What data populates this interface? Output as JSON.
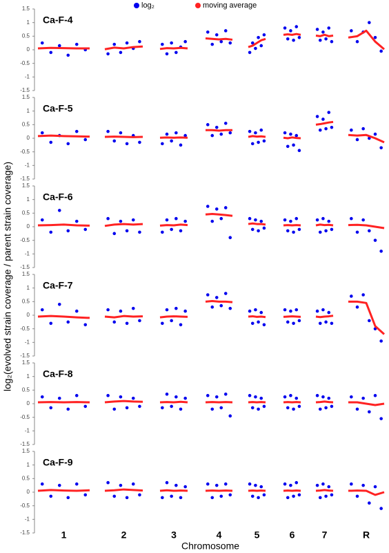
{
  "legend": [
    {
      "name": "log₂",
      "color": "#0000ee"
    },
    {
      "name": "moving average",
      "color": "#ff2222"
    }
  ],
  "y_label": "log₂(evolved strain coverage / parent strain coverage)",
  "x_label": "Chromosome",
  "categories": [
    "1",
    "2",
    "3",
    "4",
    "5",
    "6",
    "7",
    "R"
  ],
  "chart_data": [
    {
      "type": "scatter",
      "title": "Ca-F-4",
      "ylim": [
        -1.5,
        1.5
      ],
      "yticks": [
        -1.5,
        -1,
        -0.5,
        0,
        0.5,
        1,
        1.5
      ],
      "log2": [
        [
          0.25,
          -0.1,
          0.15,
          -0.2,
          0.2,
          0.0
        ],
        [
          -0.15,
          0.2,
          -0.1,
          0.25,
          0.05,
          0.3
        ],
        [
          0.2,
          -0.15,
          0.25,
          -0.1,
          0.1,
          0.3
        ],
        [
          0.65,
          0.2,
          0.55,
          0.3,
          0.7,
          0.25
        ],
        [
          -0.1,
          0.25,
          0.05,
          0.45,
          0.15,
          0.55
        ],
        [
          0.8,
          0.4,
          0.7,
          0.35,
          0.85,
          0.45
        ],
        [
          0.75,
          0.35,
          0.65,
          0.4,
          0.8,
          0.3
        ],
        [
          0.7,
          0.3,
          0.65,
          1.0,
          0.45,
          -0.05
        ]
      ],
      "moving_average": [
        [
          0.05,
          0.07,
          0.06,
          0.05,
          0.05
        ],
        [
          0.02,
          0.08,
          0.05,
          0.1,
          0.12
        ],
        [
          0.03,
          0.06,
          0.05,
          0.07,
          0.05
        ],
        [
          0.42,
          0.4,
          0.38,
          0.4,
          0.37
        ],
        [
          0.1,
          0.15,
          0.25,
          0.35,
          0.4
        ],
        [
          0.55,
          0.57,
          0.55,
          0.58,
          0.55
        ],
        [
          0.52,
          0.5,
          0.55,
          0.5,
          0.52
        ],
        [
          0.45,
          0.5,
          0.7,
          0.3,
          0.02
        ]
      ]
    },
    {
      "type": "scatter",
      "title": "Ca-F-5",
      "ylim": [
        -1.5,
        1.5
      ],
      "yticks": [
        -1.5,
        -1,
        -0.5,
        0,
        0.5,
        1,
        1.5
      ],
      "log2": [
        [
          0.2,
          -0.15,
          0.1,
          -0.2,
          0.25,
          -0.05
        ],
        [
          0.25,
          -0.1,
          0.2,
          -0.2,
          0.1,
          -0.15
        ],
        [
          -0.2,
          0.15,
          -0.1,
          0.2,
          -0.25,
          0.1
        ],
        [
          0.5,
          0.1,
          0.4,
          0.15,
          0.55,
          0.2
        ],
        [
          0.25,
          -0.2,
          0.2,
          -0.15,
          0.3,
          -0.1
        ],
        [
          0.2,
          -0.3,
          0.15,
          -0.25,
          0.1,
          -0.45
        ],
        [
          0.8,
          0.3,
          0.7,
          0.35,
          0.95,
          0.4
        ],
        [
          0.3,
          -0.05,
          0.35,
          0.0,
          0.15,
          -0.35
        ]
      ],
      "moving_average": [
        [
          0.08,
          0.1,
          0.08,
          0.07,
          0.06
        ],
        [
          0.05,
          0.06,
          0.05,
          0.04,
          0.05
        ],
        [
          0.02,
          0.03,
          0.02,
          0.03,
          0.02
        ],
        [
          0.3,
          0.3,
          0.28,
          0.3,
          0.3
        ],
        [
          0.05,
          0.08,
          0.06,
          0.07,
          0.05
        ],
        [
          0.02,
          0.0,
          0.03,
          0.01,
          0.0
        ],
        [
          0.5,
          0.52,
          0.55,
          0.58,
          0.6
        ],
        [
          0.12,
          0.1,
          0.12,
          0.0,
          -0.15
        ]
      ]
    },
    {
      "type": "scatter",
      "title": "Ca-F-6",
      "ylim": [
        -1.5,
        1.5
      ],
      "yticks": [
        -1.5,
        -1,
        -0.5,
        0,
        0.5,
        1,
        1.5
      ],
      "log2": [
        [
          0.25,
          -0.2,
          0.6,
          -0.15,
          0.2,
          -0.1
        ],
        [
          0.3,
          -0.25,
          0.2,
          -0.15,
          0.25,
          -0.2
        ],
        [
          -0.2,
          0.25,
          -0.1,
          0.3,
          -0.15,
          0.2
        ],
        [
          0.75,
          0.2,
          0.65,
          0.3,
          0.7,
          -0.4
        ],
        [
          0.3,
          -0.1,
          0.25,
          -0.15,
          0.2,
          -0.05
        ],
        [
          0.25,
          -0.15,
          0.2,
          -0.2,
          0.3,
          -0.1
        ],
        [
          0.25,
          -0.2,
          0.3,
          -0.15,
          0.2,
          -0.1
        ],
        [
          0.3,
          -0.2,
          0.25,
          -0.15,
          -0.5,
          -0.9
        ]
      ],
      "moving_average": [
        [
          0.05,
          0.06,
          0.08,
          0.05,
          0.04
        ],
        [
          0.03,
          0.08,
          0.1,
          0.08,
          0.1
        ],
        [
          0.04,
          0.06,
          0.05,
          0.08,
          0.06
        ],
        [
          0.45,
          0.47,
          0.45,
          0.43,
          0.4
        ],
        [
          0.1,
          0.12,
          0.1,
          0.1,
          0.08
        ],
        [
          0.05,
          0.06,
          0.05,
          0.06,
          0.05
        ],
        [
          0.05,
          0.08,
          0.06,
          0.07,
          0.05
        ],
        [
          0.06,
          0.07,
          0.05,
          0.0,
          -0.05
        ]
      ]
    },
    {
      "type": "scatter",
      "title": "Ca-F-7",
      "ylim": [
        -1.5,
        1.5
      ],
      "yticks": [
        -1.5,
        -1,
        -0.5,
        0,
        0.5,
        1,
        1.5
      ],
      "log2": [
        [
          0.2,
          -0.3,
          0.4,
          -0.25,
          0.15,
          -0.35
        ],
        [
          0.2,
          -0.25,
          0.15,
          -0.3,
          0.25,
          -0.2
        ],
        [
          -0.3,
          0.2,
          -0.2,
          0.25,
          -0.35,
          0.15
        ],
        [
          0.75,
          0.3,
          0.65,
          0.35,
          0.8,
          0.25
        ],
        [
          0.15,
          -0.3,
          0.2,
          -0.25,
          0.1,
          -0.35
        ],
        [
          0.2,
          -0.25,
          0.15,
          -0.3,
          0.2,
          -0.2
        ],
        [
          0.15,
          -0.3,
          0.2,
          -0.25,
          0.1,
          -0.3
        ],
        [
          0.7,
          0.3,
          0.75,
          -0.2,
          -0.5,
          -0.95
        ]
      ],
      "moving_average": [
        [
          -0.05,
          -0.03,
          -0.05,
          -0.08,
          -0.1
        ],
        [
          -0.05,
          -0.08,
          -0.03,
          -0.05,
          -0.04
        ],
        [
          -0.08,
          -0.05,
          -0.04,
          -0.05,
          -0.06
        ],
        [
          0.5,
          0.52,
          0.5,
          0.5,
          0.48
        ],
        [
          -0.05,
          -0.04,
          -0.06,
          -0.05,
          -0.07
        ],
        [
          -0.06,
          -0.05,
          -0.04,
          -0.05,
          -0.06
        ],
        [
          -0.05,
          -0.07,
          -0.05,
          -0.04,
          -0.02
        ],
        [
          0.5,
          0.5,
          0.45,
          -0.4,
          -0.7
        ]
      ]
    },
    {
      "type": "scatter",
      "title": "Ca-F-8",
      "ylim": [
        -1.5,
        1.5
      ],
      "yticks": [
        -1.5,
        -1,
        -0.5,
        0,
        0.5,
        1,
        1.5
      ],
      "log2": [
        [
          0.25,
          -0.15,
          0.2,
          -0.2,
          0.3,
          -0.1
        ],
        [
          0.3,
          -0.2,
          0.25,
          -0.15,
          0.2,
          -0.1
        ],
        [
          -0.15,
          0.35,
          -0.1,
          0.25,
          -0.2,
          0.2
        ],
        [
          0.3,
          -0.2,
          0.25,
          -0.15,
          0.35,
          -0.45
        ],
        [
          0.3,
          -0.15,
          0.25,
          -0.2,
          0.2,
          -0.1
        ],
        [
          0.25,
          -0.15,
          0.3,
          -0.2,
          0.2,
          -0.1
        ],
        [
          0.3,
          -0.2,
          0.25,
          -0.15,
          0.2,
          -0.1
        ],
        [
          0.25,
          -0.2,
          0.2,
          -0.3,
          0.3,
          -0.55
        ]
      ],
      "moving_average": [
        [
          0.05,
          0.06,
          0.05,
          0.06,
          0.05
        ],
        [
          0.05,
          0.08,
          0.1,
          0.08,
          0.07
        ],
        [
          0.05,
          0.06,
          0.05,
          0.07,
          0.05
        ],
        [
          0.05,
          0.06,
          0.05,
          0.06,
          0.05
        ],
        [
          0.05,
          0.06,
          0.05,
          0.06,
          0.05
        ],
        [
          0.05,
          0.06,
          0.05,
          0.06,
          0.05
        ],
        [
          0.05,
          0.06,
          0.08,
          0.06,
          0.05
        ],
        [
          0.05,
          0.05,
          0.0,
          -0.05,
          0.0
        ]
      ]
    },
    {
      "type": "scatter",
      "title": "Ca-F-9",
      "ylim": [
        -1.5,
        1.5
      ],
      "yticks": [
        -1.5,
        -1,
        -0.5,
        0,
        0.5,
        1,
        1.5
      ],
      "log2": [
        [
          0.3,
          -0.15,
          0.25,
          -0.2,
          0.3,
          -0.1
        ],
        [
          0.35,
          -0.15,
          0.25,
          -0.2,
          0.3,
          -0.1
        ],
        [
          -0.2,
          0.35,
          -0.15,
          0.25,
          -0.2,
          0.2
        ],
        [
          0.3,
          -0.2,
          0.25,
          -0.15,
          0.3,
          -0.1
        ],
        [
          0.3,
          -0.15,
          0.25,
          -0.2,
          0.2,
          -0.1
        ],
        [
          0.3,
          -0.2,
          0.25,
          -0.15,
          0.35,
          -0.1
        ],
        [
          0.25,
          -0.2,
          0.3,
          -0.15,
          0.2,
          -0.1
        ],
        [
          0.3,
          -0.15,
          0.25,
          -0.4,
          0.2,
          -0.6
        ]
      ],
      "moving_average": [
        [
          0.05,
          0.08,
          0.06,
          0.05,
          0.07
        ],
        [
          0.05,
          0.07,
          0.1,
          0.08,
          0.06
        ],
        [
          0.05,
          0.07,
          0.05,
          0.06,
          0.05
        ],
        [
          0.05,
          0.06,
          0.05,
          0.06,
          0.05
        ],
        [
          0.05,
          0.06,
          0.05,
          0.06,
          0.05
        ],
        [
          0.05,
          0.06,
          0.05,
          0.06,
          0.05
        ],
        [
          0.05,
          0.06,
          0.08,
          0.06,
          0.05
        ],
        [
          0.05,
          0.06,
          0.05,
          -0.1,
          0.0
        ]
      ]
    }
  ]
}
